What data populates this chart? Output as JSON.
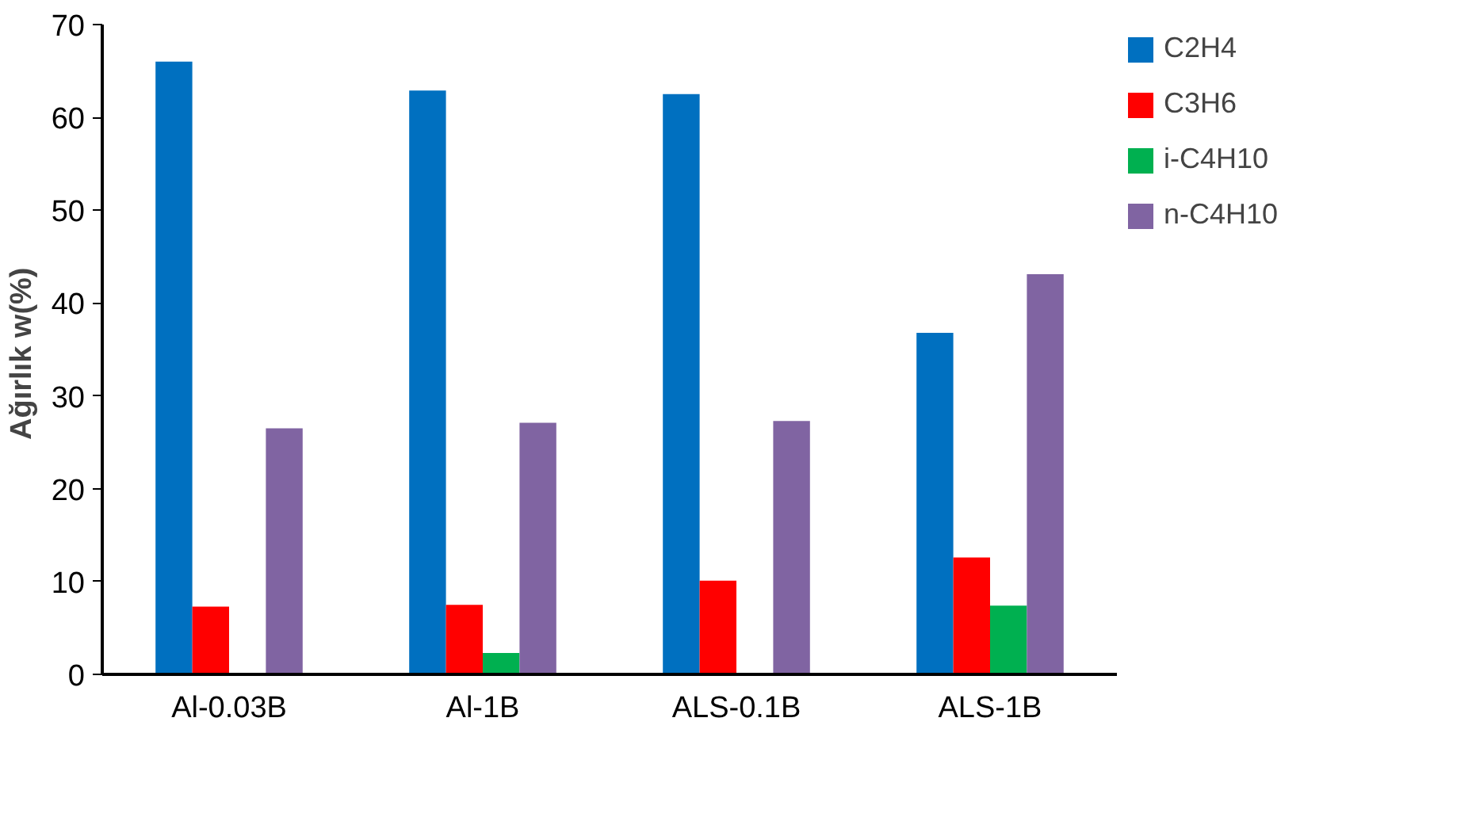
{
  "chart_data": {
    "type": "bar",
    "ylabel": "Ağırlık  w(%)",
    "categories": [
      "Al-0.03B",
      "Al-1B",
      "ALS-0.1B",
      "ALS-1B"
    ],
    "series": [
      {
        "name": "C2H4",
        "color": "#0070c0",
        "values": [
          66.0,
          62.9,
          62.5,
          36.8
        ]
      },
      {
        "name": "C3H6",
        "color": "#ff0000",
        "values": [
          7.3,
          7.5,
          10.1,
          12.6
        ]
      },
      {
        "name": "i-C4H10",
        "color": "#00b050",
        "values": [
          null,
          2.3,
          null,
          7.4
        ]
      },
      {
        "name": "n-C4H10",
        "color": "#8064a2",
        "values": [
          26.5,
          27.1,
          27.3,
          43.1
        ]
      }
    ],
    "ylim": [
      0,
      70
    ],
    "yticks": [
      0,
      10,
      20,
      30,
      40,
      50,
      60,
      70
    ],
    "grid": false,
    "legend": "top right"
  }
}
